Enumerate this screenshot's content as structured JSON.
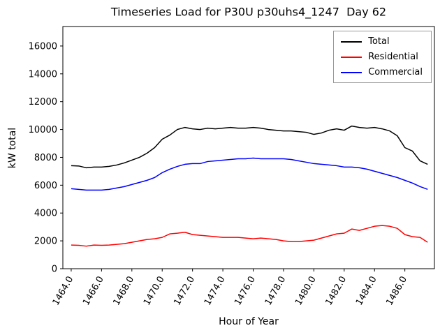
{
  "figure": {
    "title": "Timeseries Load for P30U p30uhs4_1247  Day 62",
    "xlabel": "Hour of Year",
    "ylabel": "kW total"
  },
  "chart_data": {
    "type": "line",
    "title": "Timeseries Load for P30U p30uhs4_1247  Day 62",
    "xlabel": "Hour of Year",
    "ylabel": "kW total",
    "xlim": [
      1463.45,
      1487.95
    ],
    "ylim": [
      0,
      17400
    ],
    "grid": false,
    "legend_position": "upper right",
    "xticks": [
      1464,
      1466,
      1468,
      1470,
      1472,
      1474,
      1476,
      1478,
      1480,
      1482,
      1484,
      1486
    ],
    "xtick_labels": [
      "1464.0",
      "1466.0",
      "1468.0",
      "1470.0",
      "1472.0",
      "1474.0",
      "1476.0",
      "1478.0",
      "1480.0",
      "1482.0",
      "1484.0",
      "1486.0"
    ],
    "yticks": [
      0,
      2000,
      4000,
      6000,
      8000,
      10000,
      12000,
      14000,
      16000
    ],
    "ytick_labels": [
      "0",
      "2000",
      "4000",
      "6000",
      "8000",
      "10000",
      "12000",
      "14000",
      "16000"
    ],
    "x_start": 1464.0,
    "x_step": 0.5,
    "series": [
      {
        "name": "Total",
        "color": "#000000",
        "values": [
          7400,
          7380,
          7250,
          7300,
          7300,
          7350,
          7450,
          7600,
          7800,
          8000,
          8300,
          8700,
          9300,
          9600,
          10000,
          10150,
          10050,
          10000,
          10100,
          10050,
          10100,
          10150,
          10100,
          10100,
          10150,
          10100,
          10000,
          9950,
          9900,
          9900,
          9850,
          9800,
          9650,
          9750,
          9950,
          10050,
          9950,
          10250,
          10150,
          10100,
          10150,
          10050,
          9900,
          9550,
          8700,
          8450,
          7750,
          7500
        ]
      },
      {
        "name": "Residential",
        "color": "#ff0000",
        "values": [
          1700,
          1680,
          1620,
          1700,
          1680,
          1700,
          1750,
          1800,
          1900,
          2000,
          2100,
          2150,
          2250,
          2500,
          2550,
          2620,
          2450,
          2400,
          2350,
          2300,
          2250,
          2250,
          2250,
          2200,
          2150,
          2200,
          2150,
          2100,
          2000,
          1950,
          1950,
          2000,
          2050,
          2200,
          2350,
          2500,
          2550,
          2850,
          2750,
          2900,
          3050,
          3100,
          3050,
          2900,
          2450,
          2300,
          2250,
          1900
        ]
      },
      {
        "name": "Commercial",
        "color": "#0000ff",
        "values": [
          5750,
          5700,
          5650,
          5650,
          5650,
          5700,
          5800,
          5900,
          6050,
          6200,
          6350,
          6550,
          6900,
          7150,
          7350,
          7500,
          7550,
          7550,
          7700,
          7750,
          7800,
          7850,
          7900,
          7900,
          7950,
          7900,
          7900,
          7900,
          7900,
          7850,
          7750,
          7650,
          7550,
          7500,
          7450,
          7400,
          7300,
          7300,
          7250,
          7150,
          7000,
          6850,
          6700,
          6550,
          6350,
          6150,
          5900,
          5700
        ]
      }
    ]
  }
}
